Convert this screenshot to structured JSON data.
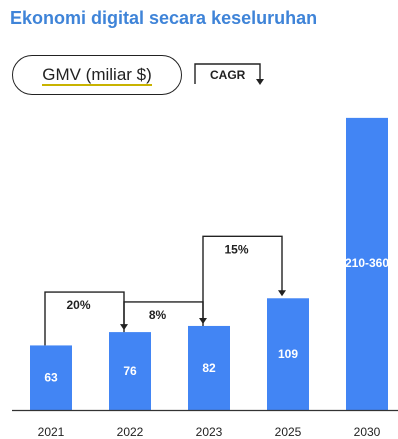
{
  "title": "Ekonomi digital secara keseluruhan",
  "legend": {
    "gmv_label": "GMV (miliar $)",
    "cagr_label": "CAGR"
  },
  "colors": {
    "bar": "#4285f4",
    "title": "#3f84d8",
    "axis": "#333333"
  },
  "chart_data": {
    "type": "bar",
    "title": "Ekonomi digital secara keseluruhan",
    "ylabel": "GMV (miliar $)",
    "categories": [
      "2021",
      "2022",
      "2023",
      "2025",
      "2030"
    ],
    "values": [
      63,
      76,
      82,
      109,
      285
    ],
    "value_labels": [
      "63",
      "76",
      "82",
      "109",
      "210-360"
    ],
    "range_2030": [
      210,
      360
    ],
    "ylim": [
      0,
      300
    ],
    "grid": false,
    "cagr": [
      {
        "from": "2021",
        "to": "2022",
        "label": "20%"
      },
      {
        "from": "2022",
        "to": "2023",
        "label": "8%"
      },
      {
        "from": "2023",
        "to": "2025",
        "label": "15%"
      }
    ]
  }
}
